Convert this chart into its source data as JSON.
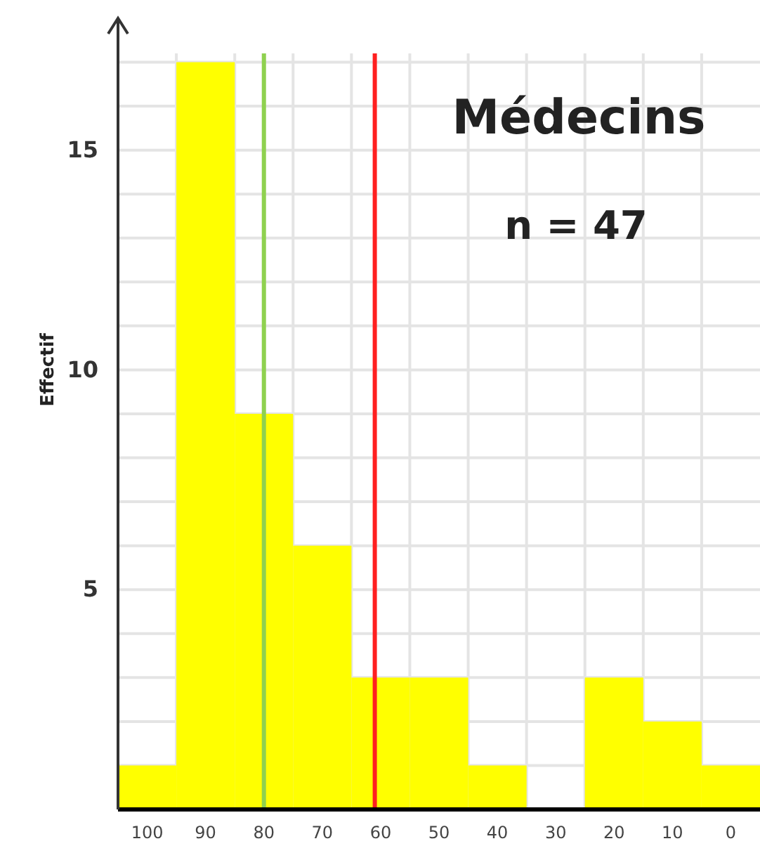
{
  "chart_data": {
    "type": "histogram",
    "title": "Médecins",
    "subtitle": "n = 47",
    "ylabel": "Effectif",
    "bins": [
      -5,
      5,
      15,
      25,
      35,
      45,
      55,
      65,
      75,
      85,
      95,
      105
    ],
    "values": [
      1,
      2,
      3,
      0,
      1,
      3,
      3,
      6,
      9,
      17,
      1
    ],
    "color": "#ffff00",
    "xlim": [
      105,
      -5
    ],
    "xticks": [
      100,
      90,
      80,
      70,
      60,
      50,
      40,
      30,
      20,
      10,
      0
    ],
    "ylim": [
      0,
      17.2
    ],
    "yticks": [
      {
        "value": 1,
        "label": null
      },
      {
        "value": 2,
        "label": null
      },
      {
        "value": 3,
        "label": null
      },
      {
        "value": 4,
        "label": null
      },
      5,
      {
        "value": 6,
        "label": null
      },
      {
        "value": 7,
        "label": null
      },
      {
        "value": 8,
        "label": null
      },
      {
        "value": 9,
        "label": null
      },
      10,
      {
        "value": 11,
        "label": null
      },
      {
        "value": 12,
        "label": null
      },
      {
        "value": 13,
        "label": null
      },
      {
        "value": 14,
        "label": null
      },
      15,
      {
        "value": 16,
        "label": null
      },
      {
        "value": 17,
        "label": null
      }
    ],
    "grid": true,
    "ref_lines": [
      {
        "axis": "x",
        "value": 80,
        "color": "#8fd14f"
      },
      {
        "axis": "x",
        "value": 61,
        "color": "#ff2020"
      }
    ]
  }
}
